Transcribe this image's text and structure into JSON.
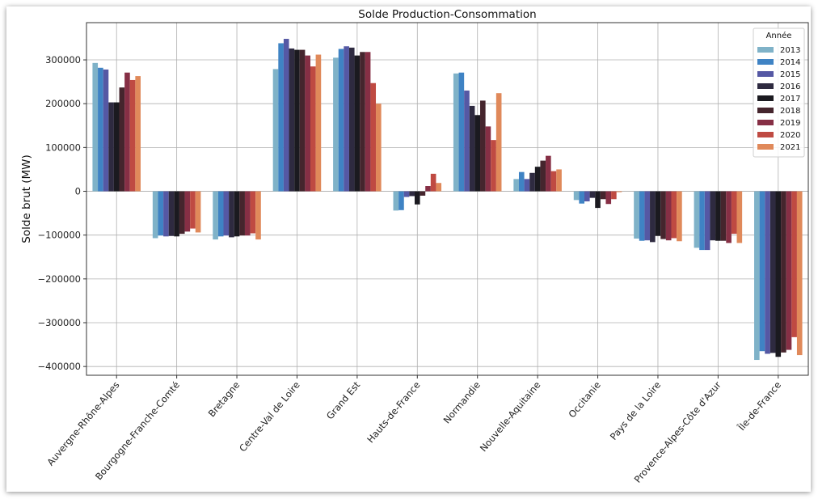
{
  "chart_data": {
    "type": "bar",
    "title": "Solde Production-Consommation",
    "xlabel": "",
    "ylabel": "Solde brut (MW)",
    "ylim": [
      -420000,
      385000
    ],
    "yticks": [
      -400000,
      -300000,
      -200000,
      -100000,
      0,
      100000,
      200000,
      300000
    ],
    "ytick_labels": [
      "−400000",
      "−300000",
      "−200000",
      "−100000",
      "0",
      "100000",
      "200000",
      "300000"
    ],
    "grid": true,
    "legend_title": "Année",
    "legend_position": "top-right",
    "categories": [
      "Auvergne-Rhône-Alpes",
      "Bourgogne-Franche-Comté",
      "Bretagne",
      "Centre-Val de Loire",
      "Grand Est",
      "Hauts-de-France",
      "Normandie",
      "Nouvelle-Aquitaine",
      "Occitanie",
      "Pays de la Loire",
      "Provence-Alpes-Côte d'Azur",
      "Île-de-France"
    ],
    "series": [
      {
        "name": "2013",
        "color": "#7fb2c8",
        "values": [
          293000,
          -107000,
          -110000,
          279000,
          305000,
          -44000,
          269000,
          28000,
          -20000,
          -108000,
          -129000,
          -385000
        ]
      },
      {
        "name": "2014",
        "color": "#3f83c4",
        "values": [
          282000,
          -101000,
          -103000,
          338000,
          325000,
          -43000,
          271000,
          44000,
          -28000,
          -113000,
          -134000,
          -365000
        ]
      },
      {
        "name": "2015",
        "color": "#5558a4",
        "values": [
          278000,
          -103000,
          -101000,
          348000,
          331000,
          -13000,
          230000,
          28000,
          -23000,
          -112000,
          -134000,
          -371000
        ]
      },
      {
        "name": "2016",
        "color": "#2e2a40",
        "values": [
          203000,
          -102000,
          -105000,
          326000,
          328000,
          -11000,
          195000,
          42000,
          -15000,
          -116000,
          -112000,
          -369000
        ]
      },
      {
        "name": "2017",
        "color": "#1b1a20",
        "values": [
          203000,
          -103000,
          -103000,
          323000,
          310000,
          -30000,
          174000,
          56000,
          -38000,
          -102000,
          -113000,
          -378000
        ]
      },
      {
        "name": "2018",
        "color": "#45252d",
        "values": [
          237000,
          -97000,
          -101000,
          323000,
          318000,
          -10000,
          207000,
          70000,
          -18000,
          -109000,
          -113000,
          -368000
        ]
      },
      {
        "name": "2019",
        "color": "#862f45",
        "values": [
          271000,
          -92000,
          -101000,
          310000,
          318000,
          12000,
          148000,
          81000,
          -29000,
          -112000,
          -118000,
          -362000
        ]
      },
      {
        "name": "2020",
        "color": "#bf4a42",
        "values": [
          254000,
          -85000,
          -96000,
          285000,
          247000,
          40000,
          117000,
          46000,
          -18000,
          -107000,
          -97000,
          -333000
        ]
      },
      {
        "name": "2021",
        "color": "#e0895a",
        "values": [
          263000,
          -94000,
          -110000,
          312000,
          200000,
          19000,
          224000,
          50000,
          -2000,
          -114000,
          -118000,
          -374000
        ]
      }
    ]
  }
}
